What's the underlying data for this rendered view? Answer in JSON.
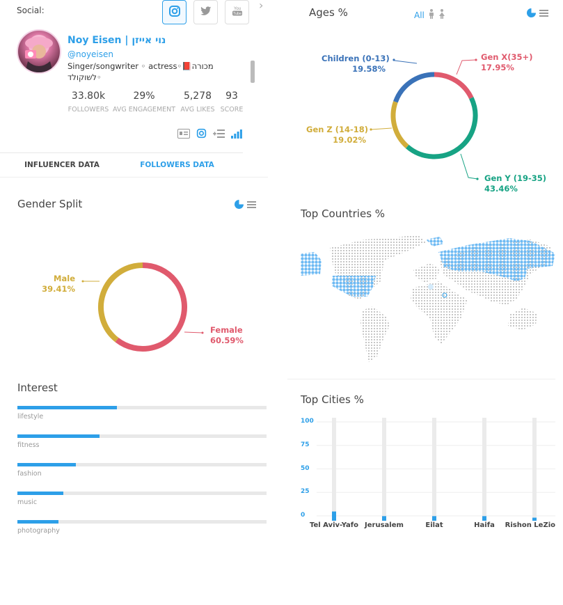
{
  "social": {
    "label": "Social:",
    "buttons": [
      {
        "name": "instagram",
        "glyph": "◎"
      },
      {
        "name": "twitter",
        "glyph": "❧"
      },
      {
        "name": "youtube",
        "glyph": "You\nTube"
      }
    ]
  },
  "profile": {
    "name": "Noy Eisen | נוי אייזן",
    "handle": "@noyeisen",
    "bio": "Singer/songwriter ◦ actress◦📕מכורה לשוקולד◦\n👇לסינגל החדש תלחצו על הלינק"
  },
  "stats": [
    {
      "value": "33.80k",
      "label": "FOLLOWERS"
    },
    {
      "value": "29%",
      "label": "AVG ENGAGEMENT"
    },
    {
      "value": "5,278",
      "label": "AVG LIKES"
    },
    {
      "value": "93",
      "label": "SCORE"
    }
  ],
  "tabs": [
    {
      "label": "INFLUENCER DATA",
      "active": false
    },
    {
      "label": "FOLLOWERS DATA",
      "active": true
    }
  ],
  "gender": {
    "title": "Gender Split",
    "chart_data": {
      "type": "pie",
      "labels": [
        "Female",
        "Male"
      ],
      "values": [
        60.59,
        39.41
      ],
      "colors": [
        "#e05a6d",
        "#d1ad3b"
      ]
    },
    "labels": [
      {
        "name": "Male",
        "pct": "39.41%"
      },
      {
        "name": "Female",
        "pct": "60.59%"
      }
    ]
  },
  "interest": {
    "title": "Interest",
    "items": [
      {
        "label": "lifestyle",
        "value": 40
      },
      {
        "label": "fitness",
        "value": 33
      },
      {
        "label": "fashion",
        "value": 23.5
      },
      {
        "label": "music",
        "value": 18.5
      },
      {
        "label": "photography",
        "value": 16.5
      }
    ]
  },
  "ages": {
    "title": "Ages %",
    "filter_label": "All",
    "chart_data": {
      "type": "pie",
      "labels": [
        "Gen X(35+)",
        "Gen Y (19-35)",
        "Gen Z (14-18)",
        "Children (0-13)"
      ],
      "values": [
        17.95,
        43.46,
        19.02,
        19.58
      ],
      "colors": [
        "#e05a6d",
        "#17a384",
        "#d1ad3b",
        "#3a72b8"
      ]
    },
    "labels": [
      {
        "name": "Children (0-13)",
        "pct": "19.58%"
      },
      {
        "name": "Gen X(35+)",
        "pct": "17.95%"
      },
      {
        "name": "Gen Z (14-18)",
        "pct": "19.02%"
      },
      {
        "name": "Gen Y (19-35)",
        "pct": "43.46%"
      }
    ]
  },
  "countries": {
    "title": "Top Countries %"
  },
  "cities": {
    "title": "Top Cities %",
    "chart_data": {
      "type": "bar",
      "categories": [
        "Tel Aviv-Yafo",
        "Jerusalem",
        "Eilat",
        "Haifa",
        "Rishon LeZio"
      ],
      "values": [
        9,
        4.5,
        4.5,
        4.5,
        3
      ],
      "ylim": [
        0,
        100
      ],
      "yticks": [
        "100",
        "75",
        "50",
        "25",
        "0"
      ]
    }
  },
  "colors": {
    "accent": "#2d9fe8",
    "female": "#e05a6d",
    "male": "#d1ad3b",
    "geny": "#17a384",
    "children": "#3a72b8"
  }
}
